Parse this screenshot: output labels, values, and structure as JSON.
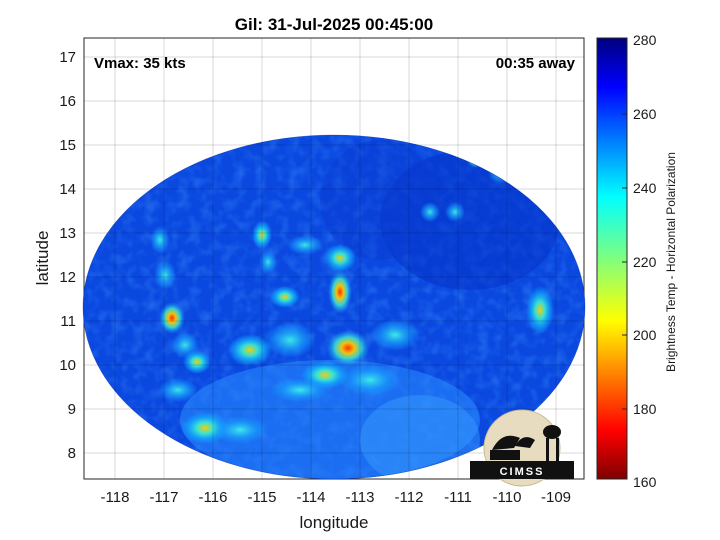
{
  "map": {
    "title": "Gil: 31-Jul-2025 00:45:00",
    "vmax_label": "Vmax: 35 kts",
    "away_label": "00:35 away",
    "xlabel": "longitude",
    "ylabel": "latitude",
    "x_ticks": [
      "-118",
      "-117",
      "-116",
      "-115",
      "-114",
      "-113",
      "-112",
      "-111",
      "-110",
      "-109"
    ],
    "y_ticks": [
      "8",
      "9",
      "10",
      "11",
      "12",
      "13",
      "14",
      "15",
      "16",
      "17"
    ],
    "grid": true
  },
  "colorbar": {
    "label": "Brightness Temp - Horizontal Polarization",
    "ticks": [
      "280",
      "260",
      "240",
      "220",
      "200",
      "180",
      "160"
    ],
    "range": [
      160,
      280
    ],
    "colormap": [
      "#7f0000",
      "#ff0000",
      "#ffff00",
      "#00ffff",
      "#0000ff",
      "#00007f"
    ]
  },
  "logo": {
    "text": "CIMSS"
  }
}
